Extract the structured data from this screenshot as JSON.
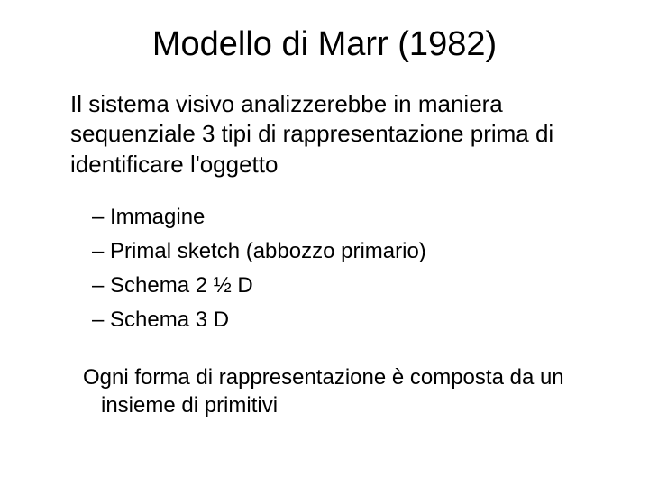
{
  "slide": {
    "title": "Modello di Marr (1982)",
    "intro": "Il sistema visivo analizzerebbe in maniera sequenziale 3 tipi di rappresentazione prima di identificare l'oggetto",
    "items": [
      {
        "label": "Immagine"
      },
      {
        "label": "Primal sketch (abbozzo primario)"
      },
      {
        "label": "Schema 2 ½ D"
      },
      {
        "label": "Schema 3 D"
      }
    ],
    "closing": "Ogni forma di rappresentazione è composta da un insieme di primitivi"
  },
  "style": {
    "background_color": "#ffffff",
    "text_color": "#000000",
    "title_fontsize_pt": 29,
    "body_fontsize_pt": 20,
    "list_fontsize_pt": 18,
    "closing_fontsize_pt": 18,
    "font_family": "Verdana"
  }
}
